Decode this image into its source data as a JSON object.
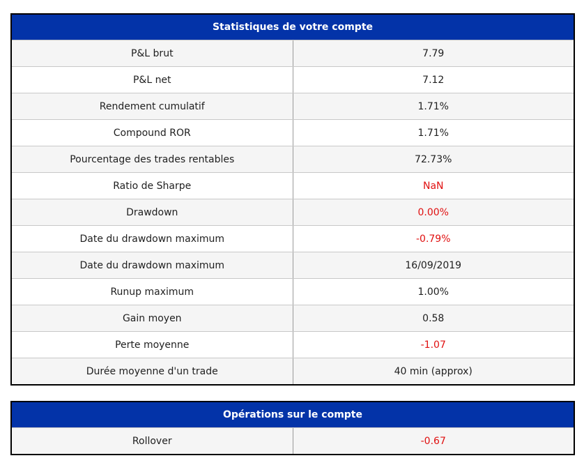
{
  "account_stats": {
    "title": "Statistiques de votre compte",
    "rows": [
      {
        "label": "P&L brut",
        "value": "7.79",
        "negative": false
      },
      {
        "label": "P&L net",
        "value": "7.12",
        "negative": false
      },
      {
        "label": "Rendement cumulatif",
        "value": "1.71%",
        "negative": false
      },
      {
        "label": "Compound ROR",
        "value": "1.71%",
        "negative": false
      },
      {
        "label": "Pourcentage des trades rentables",
        "value": "72.73%",
        "negative": false
      },
      {
        "label": "Ratio de Sharpe",
        "value": "NaN",
        "negative": true
      },
      {
        "label": "Drawdown",
        "value": "0.00%",
        "negative": true
      },
      {
        "label": "Date du drawdown maximum",
        "value": "-0.79%",
        "negative": true
      },
      {
        "label": "Date du drawdown maximum",
        "value": "16/09/2019",
        "negative": false
      },
      {
        "label": "Runup maximum",
        "value": "1.00%",
        "negative": false
      },
      {
        "label": "Gain moyen",
        "value": "0.58",
        "negative": false
      },
      {
        "label": "Perte moyenne",
        "value": "-1.07",
        "negative": true
      },
      {
        "label": "Durée moyenne d'un trade",
        "value": "40 min (approx)",
        "negative": false
      }
    ]
  },
  "account_operations": {
    "title": "Opérations sur le compte",
    "rows": [
      {
        "label": "Rollover",
        "value": "-0.67",
        "negative": true
      }
    ]
  },
  "colors": {
    "header_bg": "#0333a8",
    "negative_text": "#e01010"
  }
}
